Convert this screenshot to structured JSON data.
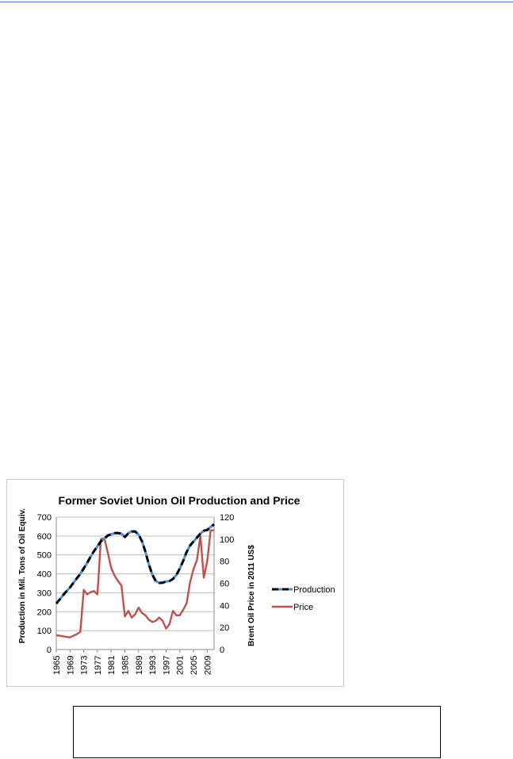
{
  "chart_data": {
    "type": "line",
    "title": "Former Soviet Union Oil Production and Price",
    "ylabel": "Production in Mil. Tons of Oil Equiv.",
    "y2label": "Brent Oil Price in 2011 US$",
    "ylim": [
      0,
      700
    ],
    "y2lim": [
      0,
      120
    ],
    "yticks": [
      "0",
      "100",
      "200",
      "300",
      "400",
      "500",
      "600",
      "700"
    ],
    "y2ticks": [
      "0",
      "20",
      "40",
      "60",
      "80",
      "100",
      "120"
    ],
    "xticks": [
      "1965",
      "1969",
      "1973",
      "1977",
      "1981",
      "1985",
      "1989",
      "1993",
      "1997",
      "2001",
      "2005",
      "2009"
    ],
    "grid": true,
    "legend_position": "right",
    "x": [
      1965,
      1966,
      1967,
      1968,
      1969,
      1970,
      1971,
      1972,
      1973,
      1974,
      1975,
      1976,
      1977,
      1978,
      1979,
      1980,
      1981,
      1982,
      1983,
      1984,
      1985,
      1986,
      1987,
      1988,
      1989,
      1990,
      1991,
      1992,
      1993,
      1994,
      1995,
      1996,
      1997,
      1998,
      1999,
      2000,
      2001,
      2002,
      2003,
      2004,
      2005,
      2006,
      2007,
      2008,
      2009,
      2010,
      2011
    ],
    "series": [
      {
        "name": "Production",
        "axis": "left",
        "color": "#000000",
        "color2": "#4a90d9",
        "values": [
          243,
          265,
          288,
          309,
          328,
          353,
          377,
          400,
          429,
          458,
          491,
          520,
          546,
          572,
          586,
          603,
          609,
          615,
          616,
          612,
          595,
          615,
          624,
          624,
          607,
          572,
          516,
          449,
          396,
          362,
          352,
          353,
          360,
          362,
          373,
          394,
          428,
          469,
          516,
          550,
          571,
          591,
          613,
          628,
          632,
          648,
          662
        ]
      },
      {
        "name": "Price",
        "axis": "right",
        "color": "#c0504d",
        "values": [
          13,
          12.5,
          12,
          11.5,
          11,
          12.5,
          14,
          16,
          54,
          50,
          52,
          53,
          50,
          100,
          101,
          88,
          74,
          67,
          62,
          58,
          30,
          35,
          29,
          32,
          38,
          33,
          31,
          27,
          25,
          26,
          29,
          26,
          19,
          23,
          35,
          31,
          31,
          36,
          42,
          61,
          73,
          81,
          103,
          65,
          80,
          108,
          108
        ]
      }
    ]
  }
}
